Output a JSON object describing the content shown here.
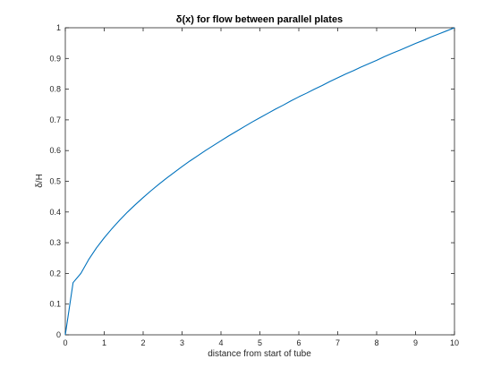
{
  "chart_data": {
    "type": "line",
    "title": "δ(x) for flow between parallel plates",
    "xlabel": "distance from start of tube",
    "ylabel": "δ/H",
    "xlim": [
      0,
      10
    ],
    "ylim": [
      0,
      1
    ],
    "xticks": [
      "0",
      "1",
      "2",
      "3",
      "4",
      "5",
      "6",
      "7",
      "8",
      "9",
      "10"
    ],
    "yticks": [
      "0",
      "0.1",
      "0.2",
      "0.3",
      "0.4",
      "0.5",
      "0.6",
      "0.7",
      "0.8",
      "0.9",
      "1"
    ],
    "grid": false,
    "line_color": "#0072BD",
    "series": [
      {
        "x": [
          0,
          0.2,
          0.4,
          0.6,
          0.8,
          1,
          1.2,
          1.4,
          1.6,
          1.8,
          2,
          2.2,
          2.4,
          2.6,
          2.8,
          3,
          3.2,
          3.4,
          3.6,
          3.8,
          4,
          4.2,
          4.4,
          4.6,
          4.8,
          5,
          5.2,
          5.4,
          5.6,
          5.8,
          6,
          6.2,
          6.4,
          6.6,
          6.8,
          7,
          7.2,
          7.4,
          7.6,
          7.8,
          8,
          8.2,
          8.4,
          8.6,
          8.8,
          9,
          9.2,
          9.4,
          9.6,
          9.8,
          10
        ],
        "y": [
          0,
          0.17,
          0.2,
          0.245,
          0.283,
          0.316,
          0.346,
          0.374,
          0.4,
          0.424,
          0.447,
          0.469,
          0.49,
          0.51,
          0.529,
          0.548,
          0.566,
          0.583,
          0.6,
          0.616,
          0.632,
          0.648,
          0.663,
          0.678,
          0.693,
          0.707,
          0.721,
          0.735,
          0.748,
          0.762,
          0.775,
          0.787,
          0.8,
          0.812,
          0.825,
          0.837,
          0.849,
          0.86,
          0.872,
          0.883,
          0.894,
          0.906,
          0.917,
          0.927,
          0.938,
          0.949,
          0.959,
          0.97,
          0.98,
          0.99,
          1
        ]
      }
    ]
  }
}
